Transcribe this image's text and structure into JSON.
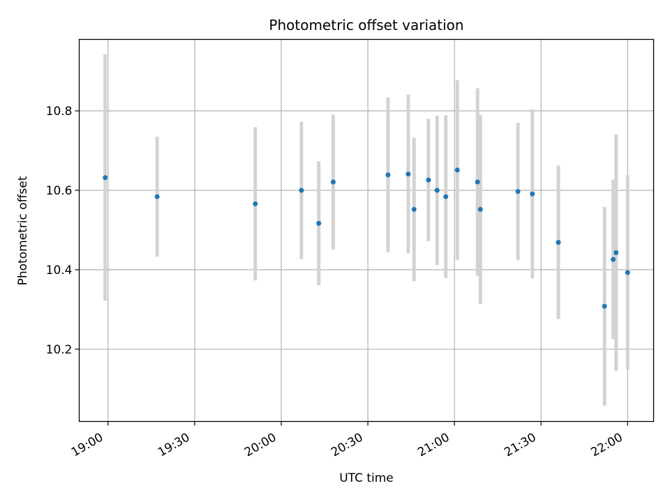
{
  "chart_data": {
    "type": "scatter",
    "title": "Photometric offset variation",
    "xlabel": "UTC time",
    "ylabel": "Photometric offset",
    "grid": true,
    "colors": {
      "points": "#1f77b4",
      "errorbars": "#d3d3d3",
      "grid": "#b0b0b0"
    },
    "x_ticks": [
      "19:00",
      "19:30",
      "20:00",
      "20:30",
      "21:00",
      "21:30",
      "22:00"
    ],
    "y_ticks": [
      "10.2",
      "10.4",
      "10.6",
      "10.8"
    ],
    "xlim": [
      "18:50",
      "22:09"
    ],
    "ylim": [
      10.018,
      10.98
    ],
    "series": [
      {
        "points": [
          {
            "x": "18:59",
            "y": 10.632,
            "yerr": 0.31
          },
          {
            "x": "19:17",
            "y": 10.584,
            "yerr": 0.151
          },
          {
            "x": "19:51",
            "y": 10.566,
            "yerr": 0.193
          },
          {
            "x": "20:07",
            "y": 10.6,
            "yerr": 0.173
          },
          {
            "x": "20:13",
            "y": 10.517,
            "yerr": 0.156
          },
          {
            "x": "20:18",
            "y": 10.621,
            "yerr": 0.17
          },
          {
            "x": "20:37",
            "y": 10.639,
            "yerr": 0.195
          },
          {
            "x": "20:44",
            "y": 10.641,
            "yerr": 0.2
          },
          {
            "x": "20:46",
            "y": 10.552,
            "yerr": 0.181
          },
          {
            "x": "20:51",
            "y": 10.626,
            "yerr": 0.154
          },
          {
            "x": "20:54",
            "y": 10.6,
            "yerr": 0.188
          },
          {
            "x": "20:57",
            "y": 10.584,
            "yerr": 0.205
          },
          {
            "x": "21:01",
            "y": 10.651,
            "yerr": 0.226
          },
          {
            "x": "21:08",
            "y": 10.621,
            "yerr": 0.236
          },
          {
            "x": "21:09",
            "y": 10.552,
            "yerr": 0.238
          },
          {
            "x": "21:22",
            "y": 10.597,
            "yerr": 0.173
          },
          {
            "x": "21:27",
            "y": 10.591,
            "yerr": 0.213
          },
          {
            "x": "21:36",
            "y": 10.469,
            "yerr": 0.193
          },
          {
            "x": "21:52",
            "y": 10.308,
            "yerr": 0.25
          },
          {
            "x": "21:55",
            "y": 10.426,
            "yerr": 0.201
          },
          {
            "x": "21:56",
            "y": 10.443,
            "yerr": 0.298
          },
          {
            "x": "22:00",
            "y": 10.393,
            "yerr": 0.245
          }
        ]
      }
    ]
  }
}
